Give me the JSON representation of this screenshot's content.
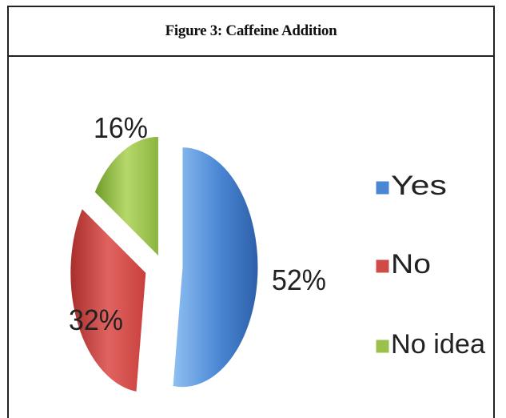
{
  "chart_data": {
    "type": "pie",
    "title": "Figure 3: Caffeine Addition",
    "legend_position": "right",
    "slices": [
      {
        "label": "Yes",
        "value": 52,
        "display": "52%",
        "color": "#4a86d4"
      },
      {
        "label": "No",
        "value": 32,
        "display": "32%",
        "color": "#d04b48"
      },
      {
        "label": "No idea",
        "value": 16,
        "display": "16%",
        "color": "#9ac24a"
      }
    ]
  }
}
